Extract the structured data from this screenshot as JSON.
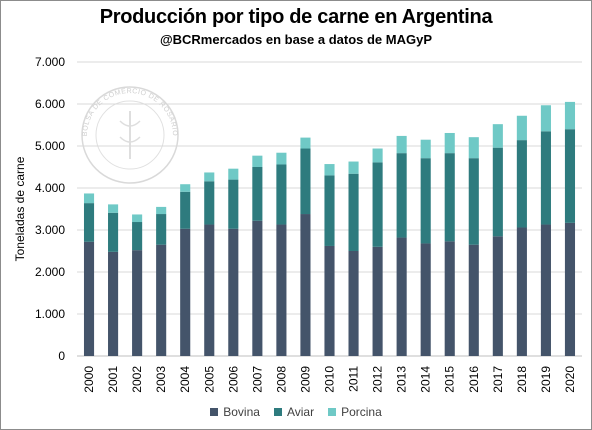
{
  "title": "Producción por tipo de carne en Argentina",
  "subtitle": "@BCRmercados en base a datos de MAGyP",
  "watermark": {
    "text": "BOLSA DE COMERCIO DE ROSARIO"
  },
  "chart_data": {
    "type": "bar",
    "stacked": true,
    "categories": [
      "2000",
      "2001",
      "2002",
      "2003",
      "2004",
      "2005",
      "2006",
      "2007",
      "2008",
      "2009",
      "2010",
      "2011",
      "2012",
      "2013",
      "2014",
      "2015",
      "2016",
      "2017",
      "2018",
      "2019",
      "2020"
    ],
    "series": [
      {
        "name": "Bovina",
        "color": "#44546a",
        "values": [
          2720,
          2480,
          2520,
          2650,
          3030,
          3130,
          3030,
          3220,
          3130,
          3380,
          2620,
          2500,
          2600,
          2820,
          2680,
          2730,
          2650,
          2850,
          3060,
          3130,
          3170
        ]
      },
      {
        "name": "Aviar",
        "color": "#2e7b7e",
        "values": [
          920,
          930,
          670,
          730,
          880,
          1030,
          1170,
          1280,
          1430,
          1560,
          1680,
          1840,
          2010,
          2010,
          2030,
          2100,
          2060,
          2110,
          2080,
          2220,
          2230
        ]
      },
      {
        "name": "Porcina",
        "color": "#6fc9c6",
        "values": [
          230,
          200,
          180,
          170,
          180,
          210,
          260,
          270,
          280,
          260,
          270,
          290,
          330,
          410,
          440,
          480,
          500,
          560,
          580,
          620,
          650
        ]
      }
    ],
    "xlabel": "",
    "ylabel": "Toneladas de carne",
    "ylim": [
      0,
      7000
    ],
    "yticks": [
      0,
      1000,
      2000,
      3000,
      4000,
      5000,
      6000,
      7000
    ],
    "ytick_labels": [
      "0",
      "1.000",
      "2.000",
      "3.000",
      "4.000",
      "5.000",
      "6.000",
      "7.000"
    ],
    "grid": true,
    "legend_position": "bottom"
  }
}
